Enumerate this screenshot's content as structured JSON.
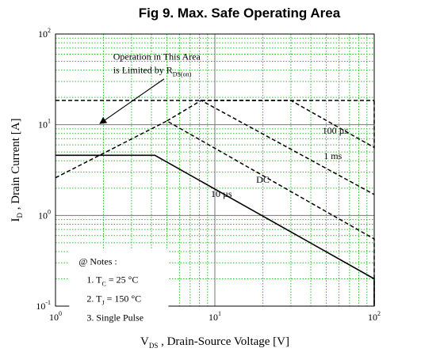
{
  "chart_data": {
    "type": "line",
    "title": "Fig 9.  Max. Safe Operating Area",
    "xlabel": {
      "symbol": "V",
      "sub": "DS",
      "text": " , Drain-Source Voltage  [V]"
    },
    "ylabel": {
      "symbol": "I",
      "sub": "D",
      "text": " ,  Drain Current   [A]"
    },
    "x_scale": "log",
    "y_scale": "log",
    "xlim": [
      1,
      100
    ],
    "ylim": [
      0.1,
      100
    ],
    "x_ticks": [
      {
        "value": 1,
        "base": "10",
        "exp": "0"
      },
      {
        "value": 10,
        "base": "10",
        "exp": "1"
      },
      {
        "value": 100,
        "base": "10",
        "exp": "2"
      }
    ],
    "y_ticks": [
      {
        "value": 0.1,
        "base": "10",
        "exp": "-1"
      },
      {
        "value": 1,
        "base": "10",
        "exp": "0"
      },
      {
        "value": 10,
        "base": "10",
        "exp": "1"
      },
      {
        "value": 100,
        "base": "10",
        "exp": "2"
      }
    ],
    "grid": "major solid gray, minor dotted green",
    "series": [
      {
        "name": "DC",
        "style": "solid",
        "label_at": [
          20,
          2.3
        ],
        "points": [
          [
            1,
            4.6
          ],
          [
            4.2,
            4.6
          ],
          [
            100,
            0.2
          ],
          [
            100,
            0.1
          ]
        ]
      },
      {
        "name": "10 µs",
        "style": "dashed",
        "label_at": [
          11,
          1.6
        ],
        "points": [
          [
            1,
            2.6
          ],
          [
            5.0,
            11.0
          ],
          [
            100,
            0.55
          ],
          [
            100,
            0.1
          ]
        ]
      },
      {
        "name": "1 ms",
        "style": "dashed",
        "label_at": [
          55,
          4.2
        ],
        "points": [
          [
            5.0,
            11.0
          ],
          [
            8.2,
            18.5
          ],
          [
            100,
            1.7
          ]
        ]
      },
      {
        "name": "100 µs",
        "style": "dashed",
        "label_at": [
          57,
          8.0
        ],
        "points": [
          [
            8.2,
            18.5
          ],
          [
            30,
            18.5
          ],
          [
            100,
            5.6
          ],
          [
            100,
            18.5
          ]
        ]
      },
      {
        "name": "R_DS(on) limit",
        "style": "dashed",
        "points": [
          [
            1,
            18.5
          ],
          [
            100,
            18.5
          ]
        ]
      }
    ],
    "annotation": {
      "line1": "Operation in This Area",
      "line2_text": "is Limited by R",
      "line2_sub": "DS(on)",
      "text_at": [
        2.3,
        52
      ],
      "arrow_from": [
        4.8,
        32
      ],
      "arrow_to": [
        1.9,
        10.3
      ]
    },
    "notes": {
      "header": "@ Notes :",
      "items": [
        {
          "prefix": "1. T",
          "sub": "C",
          "rest": " = 25 °C"
        },
        {
          "prefix": "2. T",
          "sub": "J",
          "rest": " = 150 °C"
        },
        {
          "prefix": "3. Single Pulse",
          "sub": "",
          "rest": ""
        }
      ]
    }
  }
}
